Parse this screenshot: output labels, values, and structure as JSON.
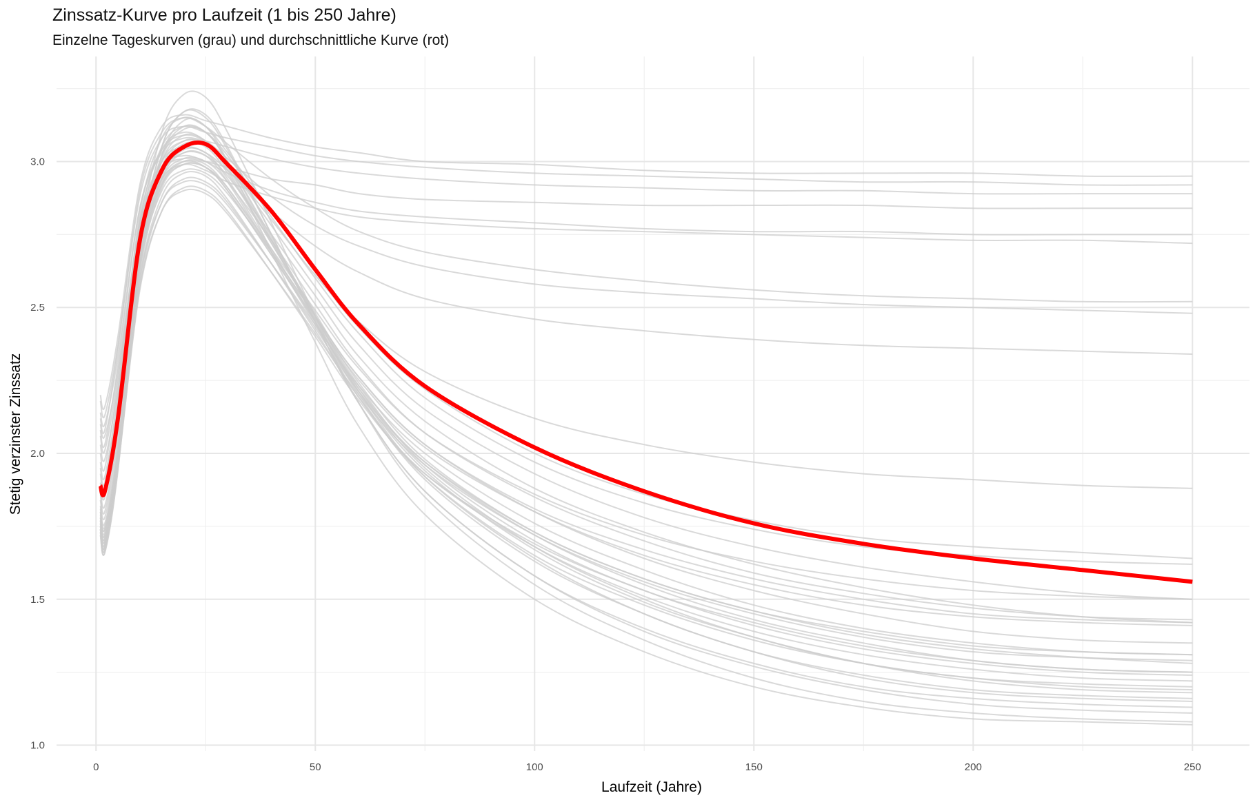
{
  "chart_data": {
    "type": "line",
    "title": "Zinssatz-Kurve pro Laufzeit (1 bis 250 Jahre)",
    "subtitle": "Einzelne Tageskurven (grau) und durchschnittliche Kurve (rot)",
    "xlabel": "Laufzeit (Jahre)",
    "ylabel": "Stetig verzinster Zinssatz",
    "xlim": [
      -9,
      263
    ],
    "ylim": [
      0.98,
      3.36
    ],
    "x_ticks": [
      0,
      50,
      100,
      150,
      200,
      250
    ],
    "x_tick_labels": [
      "0",
      "50",
      "100",
      "150",
      "200",
      "250"
    ],
    "y_ticks": [
      1.0,
      1.5,
      2.0,
      2.5,
      3.0
    ],
    "y_tick_labels": [
      "1.0",
      "1.5",
      "2.0",
      "2.5",
      "3.0"
    ],
    "grid": true,
    "legend": "none",
    "average_color": "#ff0000",
    "daily_color": "#cccccc",
    "x": [
      1,
      2,
      5,
      10,
      15,
      20,
      25,
      30,
      40,
      50,
      60,
      75,
      100,
      125,
      150,
      175,
      200,
      225,
      250
    ],
    "average_curve": {
      "values": [
        1.89,
        1.87,
        2.12,
        2.73,
        2.97,
        3.05,
        3.06,
        2.99,
        2.83,
        2.63,
        2.44,
        2.23,
        2.02,
        1.87,
        1.76,
        1.69,
        1.64,
        1.6,
        1.56
      ]
    },
    "daily_curves": [
      {
        "values": [
          2.2,
          2.16,
          2.4,
          2.92,
          3.12,
          3.16,
          3.14,
          3.12,
          3.08,
          3.05,
          3.03,
          3.0,
          2.99,
          2.97,
          2.96,
          2.96,
          2.96,
          2.95,
          2.95
        ]
      },
      {
        "values": [
          2.18,
          2.13,
          2.37,
          2.88,
          3.08,
          3.12,
          3.1,
          3.08,
          3.05,
          3.02,
          3.0,
          2.98,
          2.96,
          2.95,
          2.94,
          2.93,
          2.93,
          2.92,
          2.92
        ]
      },
      {
        "values": [
          2.14,
          2.1,
          2.33,
          2.84,
          3.03,
          3.08,
          3.07,
          3.05,
          3.01,
          2.98,
          2.96,
          2.94,
          2.92,
          2.91,
          2.9,
          2.9,
          2.89,
          2.89,
          2.89
        ]
      },
      {
        "values": [
          2.1,
          2.06,
          2.28,
          2.78,
          2.97,
          3.01,
          3.0,
          2.98,
          2.94,
          2.92,
          2.89,
          2.87,
          2.86,
          2.85,
          2.85,
          2.85,
          2.84,
          2.84,
          2.84
        ]
      },
      {
        "values": [
          2.06,
          2.01,
          2.26,
          2.78,
          2.98,
          3.02,
          3.0,
          2.96,
          2.9,
          2.86,
          2.83,
          2.81,
          2.79,
          2.77,
          2.76,
          2.76,
          2.75,
          2.75,
          2.75
        ]
      },
      {
        "values": [
          2.03,
          1.98,
          2.22,
          2.74,
          2.94,
          2.99,
          2.97,
          2.93,
          2.88,
          2.84,
          2.81,
          2.79,
          2.77,
          2.76,
          2.75,
          2.74,
          2.73,
          2.73,
          2.72
        ]
      },
      {
        "values": [
          2.12,
          2.08,
          2.36,
          2.9,
          3.1,
          3.15,
          3.12,
          3.06,
          2.94,
          2.84,
          2.76,
          2.69,
          2.63,
          2.59,
          2.56,
          2.54,
          2.53,
          2.52,
          2.52
        ]
      },
      {
        "values": [
          2.08,
          2.03,
          2.3,
          2.84,
          3.04,
          3.09,
          3.07,
          3.01,
          2.88,
          2.78,
          2.71,
          2.64,
          2.58,
          2.55,
          2.53,
          2.51,
          2.5,
          2.49,
          2.48
        ]
      },
      {
        "values": [
          2.0,
          1.95,
          2.24,
          2.79,
          3.0,
          3.05,
          3.03,
          2.97,
          2.83,
          2.71,
          2.62,
          2.53,
          2.46,
          2.42,
          2.39,
          2.37,
          2.36,
          2.35,
          2.34
        ]
      },
      {
        "values": [
          1.97,
          1.92,
          2.2,
          2.8,
          3.04,
          3.1,
          3.07,
          2.99,
          2.8,
          2.61,
          2.45,
          2.28,
          2.12,
          2.03,
          1.97,
          1.93,
          1.91,
          1.89,
          1.88
        ]
      },
      {
        "values": [
          1.95,
          1.9,
          2.19,
          2.82,
          3.08,
          3.15,
          3.12,
          3.03,
          2.83,
          2.62,
          2.43,
          2.22,
          2.0,
          1.86,
          1.77,
          1.71,
          1.68,
          1.66,
          1.64
        ]
      },
      {
        "values": [
          1.93,
          1.88,
          2.16,
          2.79,
          3.05,
          3.12,
          3.1,
          3.02,
          2.81,
          2.6,
          2.41,
          2.19,
          1.97,
          1.83,
          1.74,
          1.68,
          1.65,
          1.63,
          1.62
        ]
      },
      {
        "values": [
          1.9,
          1.85,
          2.12,
          2.74,
          3.0,
          3.07,
          3.06,
          2.99,
          2.78,
          2.57,
          2.37,
          2.15,
          1.93,
          1.78,
          1.68,
          1.61,
          1.56,
          1.52,
          1.5
        ]
      },
      {
        "values": [
          1.88,
          1.82,
          2.08,
          2.7,
          2.96,
          3.03,
          3.02,
          2.95,
          2.75,
          2.54,
          2.33,
          2.11,
          1.88,
          1.73,
          1.62,
          1.54,
          1.48,
          1.44,
          1.42
        ]
      },
      {
        "values": [
          1.86,
          1.8,
          2.06,
          2.68,
          2.94,
          3.01,
          3.0,
          2.93,
          2.73,
          2.51,
          2.3,
          2.07,
          1.85,
          1.7,
          1.59,
          1.52,
          1.47,
          1.44,
          1.43
        ]
      },
      {
        "values": [
          1.84,
          1.78,
          2.03,
          2.64,
          2.9,
          2.97,
          2.96,
          2.89,
          2.69,
          2.47,
          2.26,
          2.03,
          1.8,
          1.64,
          1.53,
          1.45,
          1.39,
          1.36,
          1.35
        ]
      },
      {
        "values": [
          1.82,
          1.76,
          2.0,
          2.6,
          2.86,
          2.93,
          2.92,
          2.85,
          2.65,
          2.44,
          2.23,
          2.0,
          1.76,
          1.6,
          1.48,
          1.4,
          1.35,
          1.32,
          1.31
        ]
      },
      {
        "values": [
          1.8,
          1.74,
          1.98,
          2.57,
          2.83,
          2.9,
          2.89,
          2.82,
          2.62,
          2.41,
          2.2,
          1.96,
          1.72,
          1.56,
          1.45,
          1.37,
          1.32,
          1.3,
          1.29
        ]
      },
      {
        "values": [
          1.78,
          1.72,
          1.96,
          2.56,
          2.83,
          2.91,
          2.9,
          2.83,
          2.62,
          2.4,
          2.18,
          1.93,
          1.69,
          1.53,
          1.41,
          1.33,
          1.28,
          1.25,
          1.24
        ]
      },
      {
        "values": [
          1.77,
          1.71,
          1.97,
          2.6,
          2.88,
          2.96,
          2.95,
          2.87,
          2.65,
          2.42,
          2.19,
          1.93,
          1.68,
          1.51,
          1.39,
          1.31,
          1.26,
          1.23,
          1.22
        ]
      },
      {
        "values": [
          1.76,
          1.7,
          1.98,
          2.65,
          2.95,
          3.04,
          3.03,
          2.94,
          2.7,
          2.45,
          2.21,
          1.94,
          1.67,
          1.49,
          1.37,
          1.28,
          1.22,
          1.19,
          1.18
        ]
      },
      {
        "values": [
          1.75,
          1.69,
          2.0,
          2.71,
          3.02,
          3.12,
          3.1,
          3.0,
          2.74,
          2.47,
          2.21,
          1.92,
          1.64,
          1.45,
          1.32,
          1.23,
          1.18,
          1.16,
          1.15
        ]
      },
      {
        "values": [
          1.74,
          1.68,
          1.98,
          2.7,
          3.05,
          3.17,
          3.15,
          3.04,
          2.75,
          2.45,
          2.17,
          1.87,
          1.58,
          1.39,
          1.27,
          1.19,
          1.14,
          1.12,
          1.11
        ]
      },
      {
        "values": [
          1.73,
          1.67,
          1.97,
          2.72,
          3.1,
          3.23,
          3.22,
          3.1,
          2.79,
          2.47,
          2.17,
          1.85,
          1.55,
          1.36,
          1.23,
          1.15,
          1.11,
          1.09,
          1.08
        ]
      },
      {
        "values": [
          1.72,
          1.66,
          1.94,
          2.66,
          3.02,
          3.14,
          3.12,
          3.0,
          2.69,
          2.38,
          2.09,
          1.79,
          1.5,
          1.32,
          1.2,
          1.13,
          1.09,
          1.08,
          1.07
        ]
      },
      {
        "values": [
          1.79,
          1.73,
          2.01,
          2.66,
          2.93,
          3.0,
          2.98,
          2.9,
          2.68,
          2.46,
          2.25,
          2.02,
          1.8,
          1.65,
          1.55,
          1.48,
          1.44,
          1.42,
          1.41
        ]
      },
      {
        "values": [
          1.81,
          1.75,
          2.02,
          2.65,
          2.92,
          2.99,
          2.98,
          2.91,
          2.7,
          2.49,
          2.29,
          2.07,
          1.86,
          1.72,
          1.63,
          1.57,
          1.53,
          1.51,
          1.5
        ]
      },
      {
        "values": [
          1.76,
          1.7,
          1.95,
          2.58,
          2.86,
          2.94,
          2.93,
          2.86,
          2.65,
          2.43,
          2.21,
          1.97,
          1.73,
          1.57,
          1.46,
          1.38,
          1.33,
          1.3,
          1.28
        ]
      },
      {
        "values": [
          1.75,
          1.69,
          1.96,
          2.62,
          2.91,
          2.99,
          2.98,
          2.9,
          2.68,
          2.45,
          2.22,
          1.97,
          1.72,
          1.55,
          1.43,
          1.35,
          1.29,
          1.26,
          1.25
        ]
      },
      {
        "values": [
          1.74,
          1.68,
          1.97,
          2.66,
          2.97,
          3.06,
          3.05,
          2.96,
          2.72,
          2.47,
          2.22,
          1.95,
          1.68,
          1.5,
          1.37,
          1.28,
          1.23,
          1.2,
          1.19
        ]
      },
      {
        "values": [
          1.73,
          1.67,
          1.96,
          2.68,
          3.01,
          3.11,
          3.1,
          3.0,
          2.73,
          2.46,
          2.2,
          1.91,
          1.63,
          1.45,
          1.32,
          1.24,
          1.19,
          1.17,
          1.16
        ]
      },
      {
        "values": [
          1.72,
          1.66,
          1.95,
          2.69,
          3.05,
          3.17,
          3.16,
          3.05,
          2.75,
          2.45,
          2.17,
          1.87,
          1.58,
          1.4,
          1.28,
          1.2,
          1.16,
          1.14,
          1.13
        ]
      },
      {
        "values": [
          1.78,
          1.72,
          2.0,
          2.69,
          3.0,
          3.09,
          3.07,
          2.98,
          2.73,
          2.48,
          2.24,
          1.98,
          1.73,
          1.57,
          1.46,
          1.39,
          1.34,
          1.32,
          1.31
        ]
      },
      {
        "values": [
          1.8,
          1.74,
          2.0,
          2.64,
          2.92,
          3.0,
          2.99,
          2.91,
          2.69,
          2.47,
          2.26,
          2.03,
          1.81,
          1.67,
          1.57,
          1.5,
          1.45,
          1.43,
          1.42
        ]
      },
      {
        "values": [
          1.77,
          1.71,
          1.99,
          2.67,
          2.98,
          3.07,
          3.06,
          2.97,
          2.72,
          2.47,
          2.23,
          1.96,
          1.7,
          1.53,
          1.42,
          1.34,
          1.29,
          1.26,
          1.25
        ]
      },
      {
        "values": [
          1.74,
          1.68,
          1.95,
          2.63,
          2.94,
          3.03,
          3.02,
          2.93,
          2.69,
          2.44,
          2.19,
          1.92,
          1.65,
          1.48,
          1.36,
          1.28,
          1.23,
          1.21,
          1.2
        ]
      }
    ]
  }
}
